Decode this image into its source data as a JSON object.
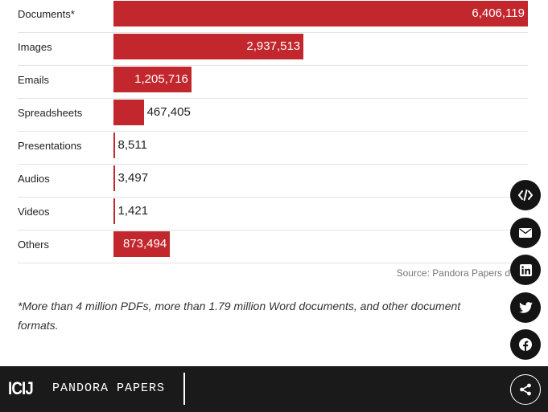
{
  "chart_data": {
    "type": "bar",
    "orientation": "horizontal",
    "categories": [
      "Documents*",
      "Images",
      "Emails",
      "Spreadsheets",
      "Presentations",
      "Audios",
      "Videos",
      "Others"
    ],
    "values": [
      6406119,
      2937513,
      1205716,
      467405,
      8511,
      3497,
      1421,
      873494
    ],
    "value_labels": [
      "6,406,119",
      "2,937,513",
      "1,205,716",
      "467,405",
      "8,511",
      "3,497",
      "1,421",
      "873,494"
    ],
    "xlim": [
      0,
      6406119
    ],
    "bar_color": "#c1272d",
    "source": "Source: Pandora Papers d",
    "footnote": "*More than 4 million PDFs, more than 1.79 million Word documents, and other document formats."
  },
  "share": {
    "items": [
      {
        "icon": "code-embed-icon",
        "name": "embed-button"
      },
      {
        "icon": "envelope-icon",
        "name": "email-share-button"
      },
      {
        "icon": "linkedin-icon",
        "name": "linkedin-share-button"
      },
      {
        "icon": "twitter-icon",
        "name": "twitter-share-button"
      },
      {
        "icon": "facebook-icon",
        "name": "facebook-share-button"
      }
    ]
  },
  "footer": {
    "brand": "ICIJ",
    "product": "PANDORA PAPERS",
    "share_icon": "share-icon"
  }
}
